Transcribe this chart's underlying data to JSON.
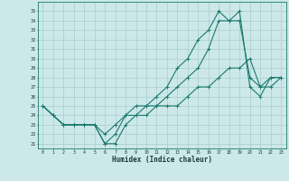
{
  "title": "",
  "xlabel": "Humidex (Indice chaleur)",
  "bg_color": "#cce8e8",
  "grid_color": "#aacccc",
  "line_color": "#1a7a6e",
  "xlim": [
    -0.5,
    23.5
  ],
  "ylim": [
    20.5,
    36
  ],
  "yticks": [
    21,
    22,
    23,
    24,
    25,
    26,
    27,
    28,
    29,
    30,
    31,
    32,
    33,
    34,
    35
  ],
  "xticks": [
    0,
    1,
    2,
    3,
    4,
    5,
    6,
    7,
    8,
    9,
    10,
    11,
    12,
    13,
    14,
    15,
    16,
    17,
    18,
    19,
    20,
    21,
    22,
    23
  ],
  "line1_x": [
    0,
    1,
    2,
    3,
    4,
    5,
    6,
    7,
    8,
    9,
    10,
    11,
    12,
    13,
    14,
    15,
    16,
    17,
    18,
    19,
    20,
    21,
    22,
    23
  ],
  "line1_y": [
    25,
    24,
    23,
    23,
    23,
    23,
    21,
    22,
    24,
    25,
    25,
    25,
    26,
    27,
    28,
    29,
    31,
    34,
    34,
    34,
    28,
    27,
    28,
    28
  ],
  "line2_x": [
    0,
    1,
    2,
    3,
    4,
    5,
    6,
    7,
    8,
    9,
    10,
    11,
    12,
    13,
    14,
    15,
    16,
    17,
    18,
    19,
    20,
    21,
    22,
    23
  ],
  "line2_y": [
    25,
    24,
    23,
    23,
    23,
    23,
    21,
    21,
    23,
    24,
    25,
    26,
    27,
    29,
    30,
    32,
    33,
    35,
    34,
    35,
    27,
    26,
    28,
    28
  ],
  "line3_x": [
    0,
    1,
    2,
    3,
    4,
    5,
    6,
    7,
    8,
    9,
    10,
    11,
    12,
    13,
    14,
    15,
    16,
    17,
    18,
    19,
    20,
    21,
    22,
    23
  ],
  "line3_y": [
    25,
    24,
    23,
    23,
    23,
    23,
    22,
    23,
    24,
    24,
    24,
    25,
    25,
    25,
    26,
    27,
    27,
    28,
    29,
    29,
    30,
    27,
    27,
    28
  ]
}
